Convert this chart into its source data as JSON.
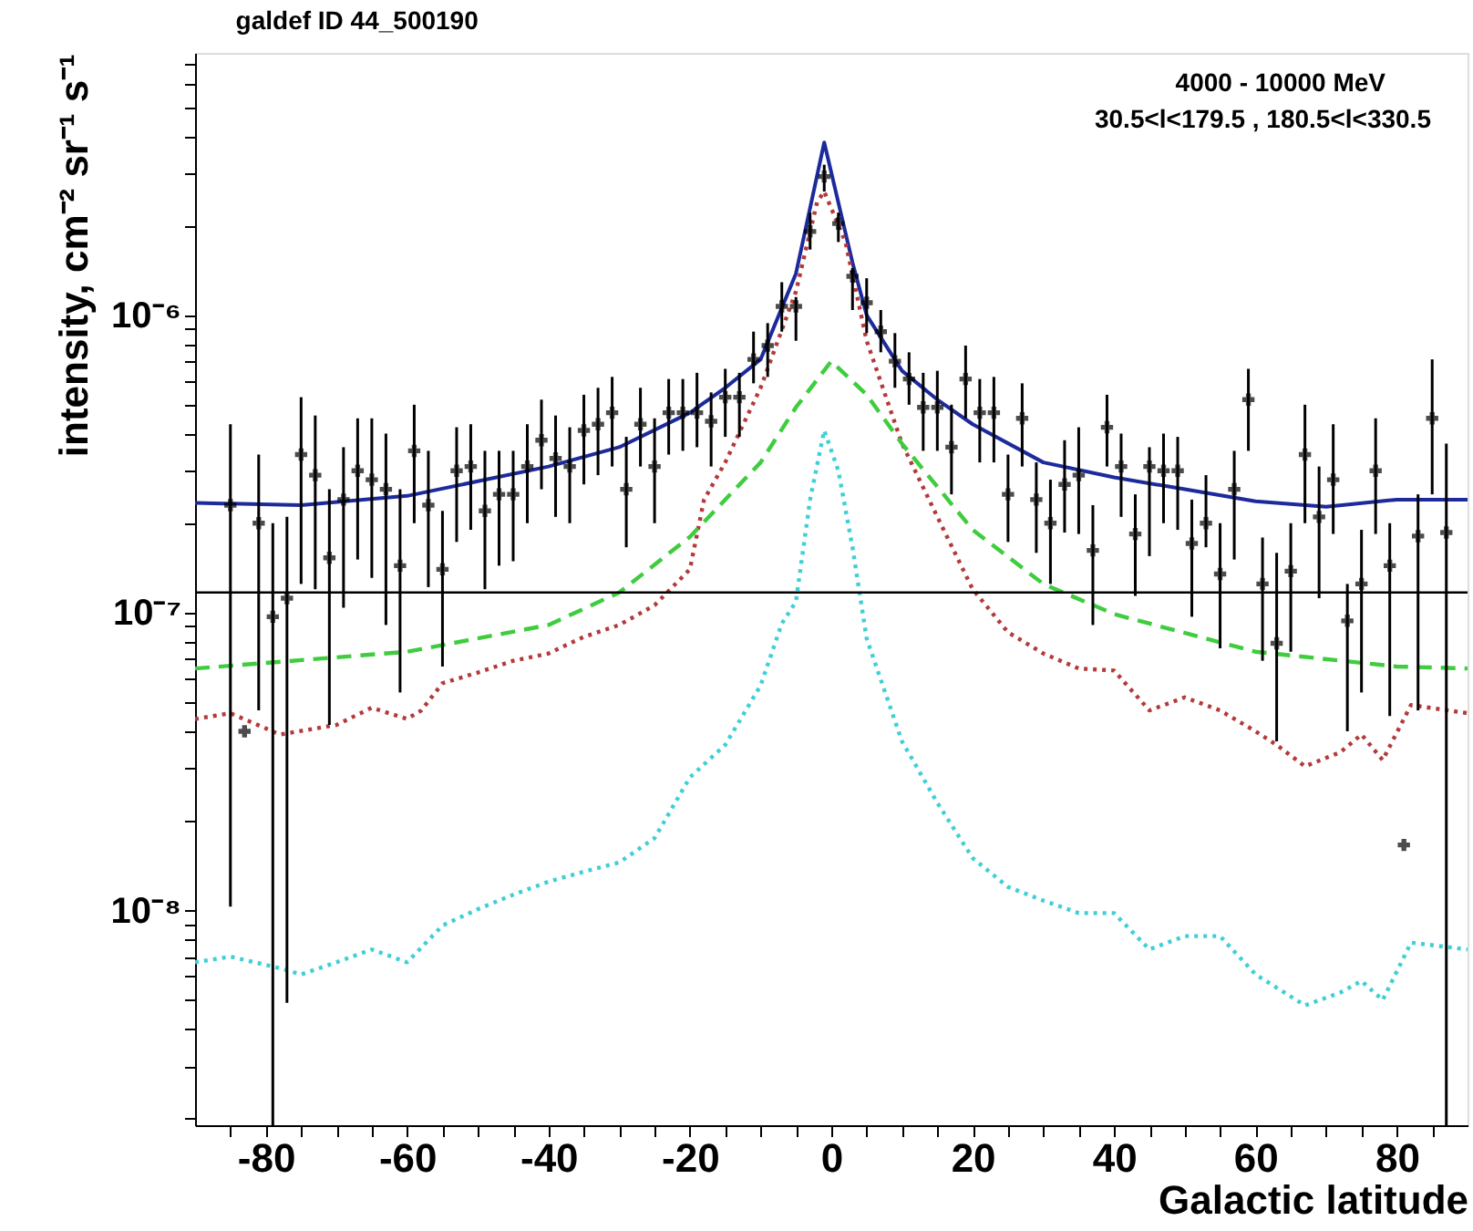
{
  "chart_data": {
    "type": "line",
    "title": "galdef ID 44_500190",
    "xlabel": "Galactic latitude",
    "ylabel": "intensity, cm⁻² sr⁻¹ s⁻¹",
    "annotations": [
      "4000 - 10000 MeV",
      "30.5<l<179.5 , 180.5<l<330.5"
    ],
    "xlim": [
      -90,
      90
    ],
    "xticks": [
      {
        "value": -85,
        "label": null
      },
      -80,
      {
        "value": -75,
        "label": null
      },
      {
        "value": -70,
        "label": null
      },
      {
        "value": -65,
        "label": null
      },
      -60,
      {
        "value": -55,
        "label": null
      },
      {
        "value": -50,
        "label": null
      },
      {
        "value": -45,
        "label": null
      },
      -40,
      {
        "value": -35,
        "label": null
      },
      {
        "value": -30,
        "label": null
      },
      {
        "value": -25,
        "label": null
      },
      -20,
      {
        "value": -15,
        "label": null
      },
      {
        "value": -10,
        "label": null
      },
      {
        "value": -5,
        "label": null
      },
      0,
      {
        "value": 5,
        "label": null
      },
      {
        "value": 10,
        "label": null
      },
      {
        "value": 15,
        "label": null
      },
      20,
      {
        "value": 25,
        "label": null
      },
      {
        "value": 30,
        "label": null
      },
      {
        "value": 35,
        "label": null
      },
      40,
      {
        "value": 45,
        "label": null
      },
      {
        "value": 50,
        "label": null
      },
      {
        "value": 55,
        "label": null
      },
      60,
      {
        "value": 65,
        "label": null
      },
      {
        "value": 70,
        "label": null
      },
      {
        "value": 75,
        "label": null
      },
      80,
      {
        "value": 85,
        "label": null
      }
    ],
    "log": true,
    "ylim": [
      1.9e-09,
      7.6e-06
    ],
    "yticks": [
      {
        "value": 2e-09,
        "label": null
      },
      {
        "value": 3e-09,
        "label": null
      },
      {
        "value": 4e-09,
        "label": null
      },
      {
        "value": 5e-09,
        "label": null
      },
      {
        "value": 6e-09,
        "label": null
      },
      {
        "value": 7e-09,
        "label": null
      },
      {
        "value": 8e-09,
        "label": null
      },
      {
        "value": 9e-09,
        "label": null
      },
      {
        "value": 1e-08,
        "label": "10⁻⁸"
      },
      {
        "value": 2e-08,
        "label": null
      },
      {
        "value": 3e-08,
        "label": null
      },
      {
        "value": 4e-08,
        "label": null
      },
      {
        "value": 5e-08,
        "label": null
      },
      {
        "value": 6e-08,
        "label": null
      },
      {
        "value": 7e-08,
        "label": null
      },
      {
        "value": 8e-08,
        "label": null
      },
      {
        "value": 9e-08,
        "label": null
      },
      {
        "value": 1e-07,
        "label": "10⁻⁷"
      },
      {
        "value": 2e-07,
        "label": null
      },
      {
        "value": 3e-07,
        "label": null
      },
      {
        "value": 4e-07,
        "label": null
      },
      {
        "value": 5e-07,
        "label": null
      },
      {
        "value": 6e-07,
        "label": null
      },
      {
        "value": 7e-07,
        "label": null
      },
      {
        "value": 8e-07,
        "label": null
      },
      {
        "value": 9e-07,
        "label": null
      },
      {
        "value": 1e-06,
        "label": "10⁻⁶"
      },
      {
        "value": 2e-06,
        "label": null
      },
      {
        "value": 3e-06,
        "label": null
      },
      {
        "value": 4e-06,
        "label": null
      },
      {
        "value": 5e-06,
        "label": null
      },
      {
        "value": 6e-06,
        "label": null
      },
      {
        "value": 7e-06,
        "label": null
      }
    ],
    "grid": false,
    "legend": false,
    "ref_lines": [
      {
        "axis": "y",
        "value": 1.17e-07,
        "color": "#000000"
      }
    ],
    "series": [
      {
        "type": "line",
        "color": "#1c2a9c",
        "line_style": "solid",
        "marker": "none",
        "x": [
          -90,
          -75,
          -60,
          -40,
          -30,
          -20,
          -15,
          -10,
          -5,
          -1,
          3,
          5,
          10,
          15,
          20,
          30,
          40,
          50,
          60,
          70,
          80,
          90
        ],
        "values": [
          2.34e-07,
          2.3e-07,
          2.47e-07,
          3.1e-07,
          3.6e-07,
          4.7e-07,
          5.7e-07,
          7.1e-07,
          1.38e-06,
          3.8e-06,
          1.5e-06,
          1e-06,
          6.5e-07,
          5.2e-07,
          4.3e-07,
          3.2e-07,
          2.85e-07,
          2.6e-07,
          2.37e-07,
          2.27e-07,
          2.4e-07,
          2.4e-07
        ]
      },
      {
        "type": "line",
        "color": "#b33a3a",
        "line_style": "dotted",
        "marker": "none",
        "x": [
          -90,
          -85,
          -78,
          -70,
          -65,
          -60,
          -58,
          -55,
          -50,
          -45,
          -40,
          -35,
          -30,
          -25,
          -20,
          -18,
          -15,
          -10,
          -5,
          -2,
          -1,
          2,
          5,
          10,
          15,
          20,
          25,
          30,
          35,
          40,
          45,
          50,
          55,
          60,
          63,
          67,
          72,
          75,
          78,
          82,
          90
        ],
        "values": [
          4.4e-08,
          4.6e-08,
          3.9e-08,
          4.2e-08,
          4.8e-08,
          4.4e-08,
          4.7e-08,
          5.8e-08,
          6.3e-08,
          6.9e-08,
          7.3e-08,
          8.3e-08,
          9.1e-08,
          1.06e-07,
          1.4e-07,
          2.4e-07,
          3.2e-07,
          5.7e-07,
          1.2e-06,
          2.4e-06,
          2.6e-06,
          1.76e-06,
          8.2e-07,
          3.7e-07,
          2.1e-07,
          1.2e-07,
          8.6e-08,
          7.3e-08,
          6.5e-08,
          6.4e-08,
          4.7e-08,
          5.2e-08,
          4.7e-08,
          4e-08,
          3.6e-08,
          3.05e-08,
          3.4e-08,
          3.9e-08,
          3.2e-08,
          4.9e-08,
          4.6e-08
        ]
      },
      {
        "type": "line",
        "color": "#3fcc3f",
        "line_style": "dashed",
        "marker": "none",
        "x": [
          -90,
          -60,
          -40,
          -30,
          -20,
          -10,
          -5,
          0,
          5,
          10,
          20,
          30,
          40,
          60,
          80,
          90
        ],
        "values": [
          6.5e-08,
          7.4e-08,
          9.1e-08,
          1.17e-07,
          1.8e-07,
          3.2e-07,
          4.9e-07,
          7e-07,
          5.4e-07,
          3.7e-07,
          1.9e-07,
          1.25e-07,
          9.9e-08,
          7.4e-08,
          6.6e-08,
          6.5e-08
        ]
      },
      {
        "type": "line",
        "color": "#3fcfd6",
        "line_style": "dotted",
        "marker": "none",
        "x": [
          -90,
          -85,
          -78,
          -75,
          -70,
          -65,
          -60,
          -55,
          -50,
          -45,
          -40,
          -35,
          -30,
          -25,
          -20,
          -15,
          -10,
          -7,
          -5,
          -3,
          -1,
          1,
          3,
          5,
          10,
          15,
          20,
          25,
          30,
          35,
          40,
          45,
          50,
          55,
          60,
          67,
          72,
          75,
          78,
          82,
          90
        ],
        "values": [
          6.7e-09,
          7e-09,
          6.4e-09,
          6.1e-09,
          6.7e-09,
          7.4e-09,
          6.7e-09,
          8.9e-09,
          1.01e-08,
          1.13e-08,
          1.25e-08,
          1.35e-08,
          1.45e-08,
          1.75e-08,
          2.8e-08,
          3.6e-08,
          5.7e-08,
          9.2e-08,
          1.09e-07,
          2.4e-07,
          4.1e-07,
          3e-07,
          1.66e-07,
          8.2e-08,
          3.7e-08,
          2.3e-08,
          1.5e-08,
          1.2e-08,
          1.08e-08,
          9.8e-09,
          9.8e-09,
          7.4e-09,
          8.2e-09,
          8.2e-09,
          6.1e-09,
          4.8e-09,
          5.3e-09,
          5.8e-09,
          5e-09,
          7.8e-09,
          7.4e-09
        ]
      },
      {
        "type": "scatter",
        "color": "#000000",
        "marker": "cross",
        "x": [
          -85,
          -83,
          -81,
          -79,
          -77,
          -75,
          -73,
          -71,
          -69,
          -67,
          -65,
          -63,
          -61,
          -59,
          -57,
          -55,
          -53,
          -51,
          -49,
          -47,
          -45,
          -43,
          -41,
          -39,
          -37,
          -35,
          -33,
          -31,
          -29,
          -27,
          -25,
          -23,
          -21,
          -19,
          -17,
          -15,
          -13,
          -11,
          -9,
          -7,
          -5,
          -3,
          -1,
          1,
          3,
          5,
          7,
          9,
          11,
          13,
          15,
          17,
          19,
          21,
          23,
          25,
          27,
          29,
          31,
          33,
          35,
          37,
          39,
          41,
          43,
          45,
          47,
          49,
          51,
          53,
          55,
          57,
          59,
          61,
          63,
          65,
          67,
          69,
          71,
          73,
          75,
          77,
          79,
          81,
          83,
          85,
          87
        ],
        "values": [
          2.3e-07,
          4e-08,
          2e-07,
          9.7e-08,
          1.12e-07,
          3.4e-07,
          2.9e-07,
          1.53e-07,
          2.4e-07,
          3e-07,
          2.8e-07,
          2.6e-07,
          1.44e-07,
          3.5e-07,
          2.3e-07,
          1.4e-07,
          3e-07,
          3.1e-07,
          2.2e-07,
          2.5e-07,
          2.5e-07,
          3.1e-07,
          3.8e-07,
          3.3e-07,
          3.1e-07,
          4.1e-07,
          4.3e-07,
          4.7e-07,
          2.6e-07,
          4.3e-07,
          3.1e-07,
          4.7e-07,
          4.7e-07,
          4.7e-07,
          4.4e-07,
          5.3e-07,
          5.3e-07,
          7.1e-07,
          7.9e-07,
          1.07e-06,
          1.07e-06,
          1.91e-06,
          2.92e-06,
          2.03e-06,
          1.35e-06,
          1.1e-06,
          8.8e-07,
          7e-07,
          6.1e-07,
          4.9e-07,
          4.9e-07,
          3.6e-07,
          6.1e-07,
          4.7e-07,
          4.7e-07,
          2.5e-07,
          4.5e-07,
          2.4e-07,
          2e-07,
          2.7e-07,
          2.9e-07,
          1.62e-07,
          4.2e-07,
          3.1e-07,
          1.84e-07,
          3.1e-07,
          3e-07,
          3e-07,
          1.71e-07,
          2e-07,
          1.35e-07,
          2.6e-07,
          5.2e-07,
          1.25e-07,
          7.9e-08,
          1.38e-07,
          3.4e-07,
          2.1e-07,
          2.8e-07,
          9.4e-08,
          1.25e-07,
          3e-07,
          1.44e-07,
          1.66e-08,
          1.81e-07,
          4.5e-07,
          1.86e-07
        ],
        "errors": [
          [
            1.03e-08,
            4.3e-07
          ],
          null,
          [
            4.7e-08,
            3.4e-07
          ],
          [
            1.9e-09,
            2e-07
          ],
          [
            4.9e-09,
            2.1e-07
          ],
          [
            1.25e-07,
            5.3e-07
          ],
          [
            1.2e-07,
            4.6e-07
          ],
          [
            4.2e-08,
            2.6e-07
          ],
          [
            1.04e-07,
            3.6e-07
          ],
          [
            1.51e-07,
            4.5e-07
          ],
          [
            1.31e-07,
            4.5e-07
          ],
          [
            9.1e-08,
            4e-07
          ],
          [
            5.4e-08,
            2.6e-07
          ],
          [
            2e-07,
            5e-07
          ],
          [
            1.22e-07,
            3.5e-07
          ],
          [
            6.6e-08,
            2.2e-07
          ],
          [
            1.73e-07,
            4.2e-07
          ],
          [
            1.9e-07,
            4.3e-07
          ],
          [
            1.2e-07,
            3.5e-07
          ],
          [
            1.44e-07,
            3.5e-07
          ],
          [
            1.49e-07,
            3.5e-07
          ],
          [
            2e-07,
            4.3e-07
          ],
          [
            2.6e-07,
            5.2e-07
          ],
          [
            2.1e-07,
            4.6e-07
          ],
          [
            2e-07,
            4.2e-07
          ],
          [
            2.7e-07,
            5.4e-07
          ],
          [
            2.9e-07,
            5.7e-07
          ],
          [
            3.1e-07,
            6.2e-07
          ],
          [
            1.66e-07,
            3.9e-07
          ],
          [
            3.1e-07,
            5.7e-07
          ],
          [
            2e-07,
            4.5e-07
          ],
          [
            3.4e-07,
            6.1e-07
          ],
          [
            3.5e-07,
            6.1e-07
          ],
          [
            3.6e-07,
            6.4e-07
          ],
          [
            3.1e-07,
            5.5e-07
          ],
          [
            3.9e-07,
            6.6e-07
          ],
          [
            3.9e-07,
            6.4e-07
          ],
          [
            5.9e-07,
            8.8e-07
          ],
          [
            6.2e-07,
            9.4e-07
          ],
          [
            8.8e-07,
            1.29e-06
          ],
          [
            8.2e-07,
            1.15e-06
          ],
          [
            1.66e-06,
            2.21e-06
          ],
          [
            2.6e-06,
            3.2e-06
          ],
          [
            1.76e-06,
            2.21e-06
          ],
          [
            1.04e-06,
            1.44e-06
          ],
          [
            8.7e-07,
            1.33e-06
          ],
          [
            7.5e-07,
            1.04e-06
          ],
          [
            5.7e-07,
            8.7e-07
          ],
          [
            5e-07,
            7.5e-07
          ],
          [
            3.5e-07,
            6.4e-07
          ],
          [
            3.5e-07,
            6.5e-07
          ],
          [
            2.5e-07,
            5e-07
          ],
          [
            4.5e-07,
            7.9e-07
          ],
          [
            3.2e-07,
            6.1e-07
          ],
          [
            3.2e-07,
            6.2e-07
          ],
          [
            1.73e-07,
            3.4e-07
          ],
          [
            3.1e-07,
            5.9e-07
          ],
          [
            1.59e-07,
            3.2e-07
          ],
          [
            1.25e-07,
            2.8e-07
          ],
          [
            1.86e-07,
            3.8e-07
          ],
          [
            1.84e-07,
            4.2e-07
          ],
          [
            9.1e-08,
            2.3e-07
          ],
          [
            3.1e-07,
            5.4e-07
          ],
          [
            2.1e-07,
            4e-07
          ],
          [
            1.14e-07,
            2.5e-07
          ],
          [
            1.55e-07,
            3.6e-07
          ],
          [
            2e-07,
            4e-07
          ],
          [
            1.9e-07,
            3.9e-07
          ],
          [
            9.7e-08,
            2.4e-07
          ],
          [
            1.66e-07,
            2.9e-07
          ],
          [
            7.6e-08,
            2e-07
          ],
          [
            1.51e-07,
            3.5e-07
          ],
          [
            3.5e-07,
            6.6e-07
          ],
          [
            6.9e-08,
            1.79e-07
          ],
          [
            3.7e-08,
            1.59e-07
          ],
          [
            7.4e-08,
            2e-07
          ],
          [
            2e-07,
            5e-07
          ],
          [
            1.12e-07,
            3.1e-07
          ],
          [
            1.84e-07,
            4.3e-07
          ],
          [
            4e-08,
            1.25e-07
          ],
          [
            5.4e-08,
            1.9e-07
          ],
          [
            1.84e-07,
            4.5e-07
          ],
          [
            4.5e-08,
            2e-07
          ],
          null,
          [
            4.7e-08,
            2.5e-07
          ],
          [
            2.5e-07,
            7.1e-07
          ],
          [
            1.9e-09,
            3.7e-07
          ]
        ]
      }
    ]
  }
}
